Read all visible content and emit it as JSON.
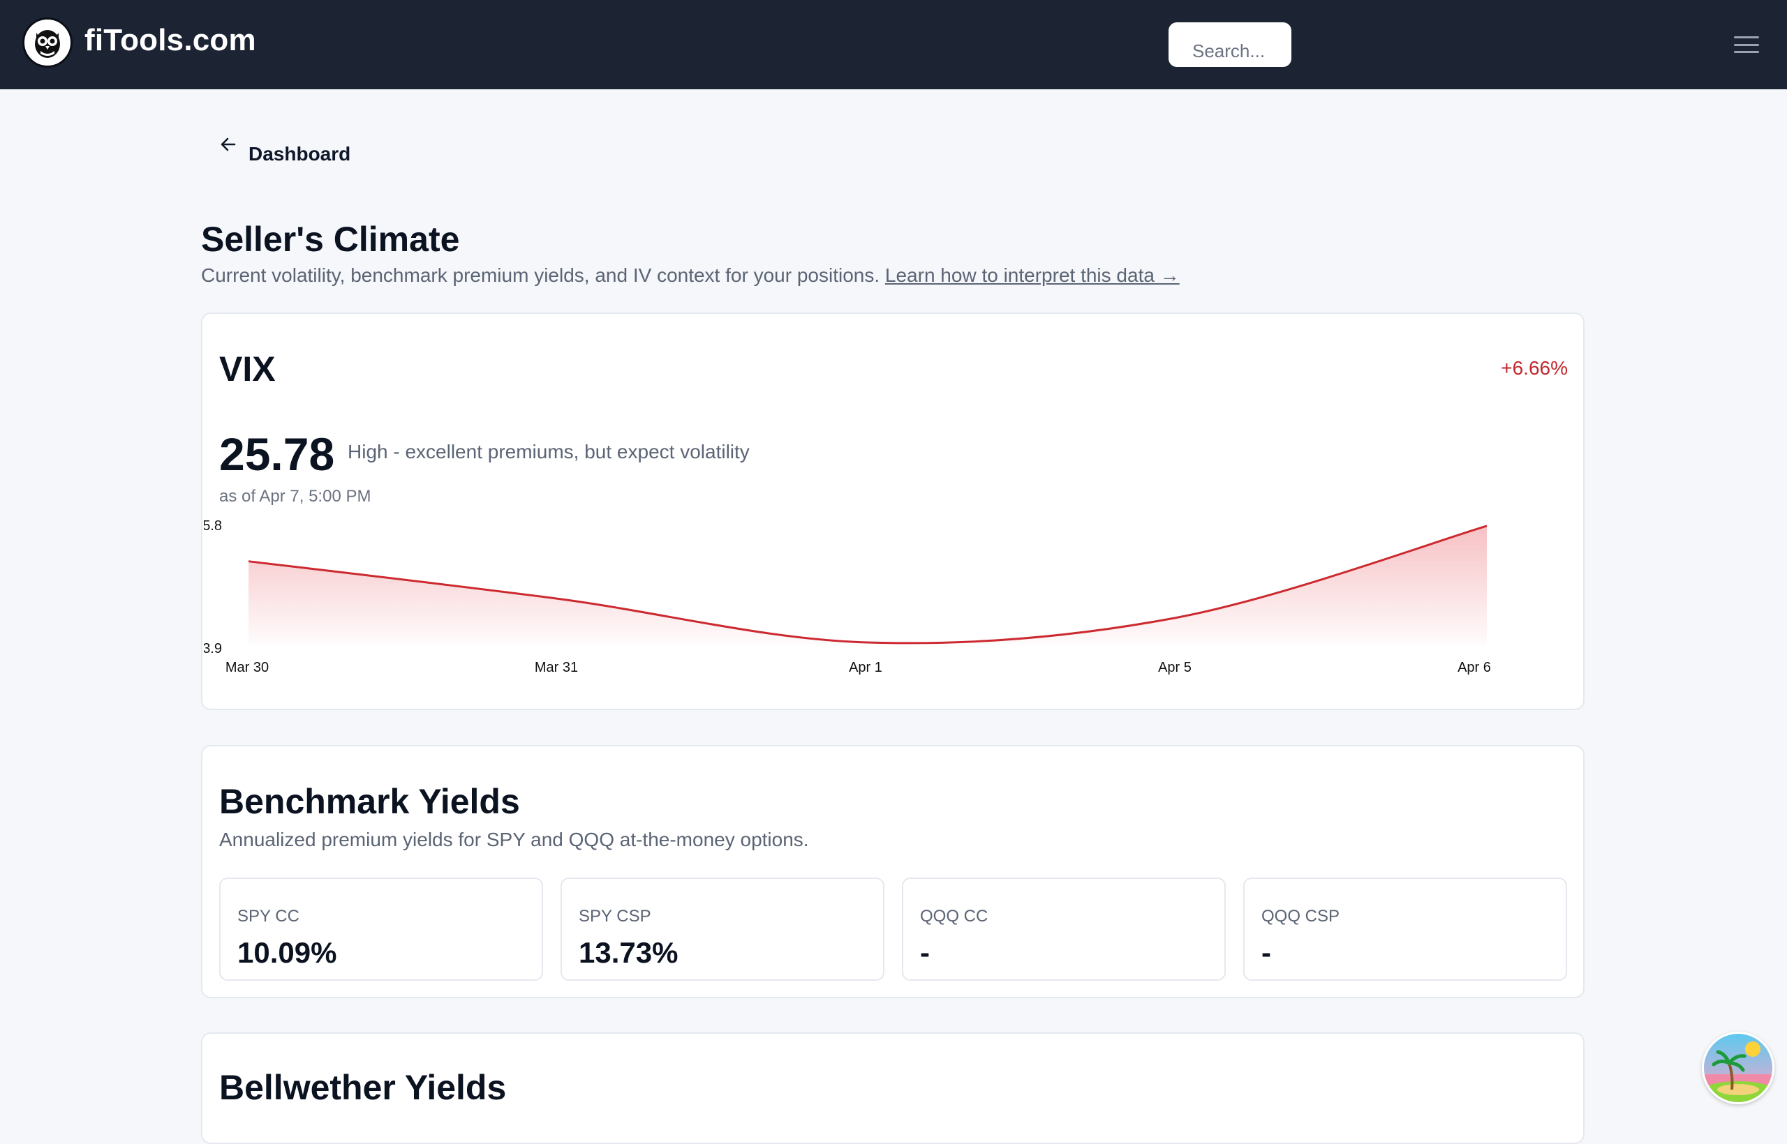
{
  "header": {
    "brand": "fiTools.com",
    "search_placeholder": "Search..."
  },
  "nav": {
    "back_label": "Dashboard"
  },
  "page": {
    "title": "Seller's Climate",
    "subtitle": "Current volatility, benchmark premium yields, and IV context for your positions.",
    "learn_link": "Learn how to interpret this data →"
  },
  "vix": {
    "title": "VIX",
    "change": "+6.66%",
    "value": "25.78",
    "description": "High - excellent premiums, but expect volatility",
    "as_of": "as of Apr 7, 5:00 PM"
  },
  "chart_data": {
    "type": "area",
    "categories": [
      "Mar 30",
      "Mar 31",
      "Apr 1",
      "Apr 5",
      "Apr 6"
    ],
    "series": [
      {
        "values": [
          24.0,
          22.2,
          20.1,
          21.3,
          25.7
        ]
      }
    ],
    "y_tick_labels": [
      "5.8",
      "3.9"
    ],
    "ylim": [
      20.0,
      25.9
    ],
    "colors": {
      "line": "#cc2a30",
      "fill": "#f5b6ba"
    },
    "grid": false
  },
  "benchmark": {
    "title": "Benchmark Yields",
    "subtitle": "Annualized premium yields for SPY and QQQ at-the-money options.",
    "tiles": [
      {
        "label": "SPY CC",
        "value": "10.09%"
      },
      {
        "label": "SPY CSP",
        "value": "13.73%"
      },
      {
        "label": "QQQ CC",
        "value": "-"
      },
      {
        "label": "QQQ CSP",
        "value": "-"
      }
    ]
  },
  "bellwether": {
    "title": "Bellwether Yields"
  },
  "icons": {
    "logo": "owl-logo-icon",
    "menu": "hamburger-menu-icon",
    "back": "arrow-left-icon",
    "avatar": "beach-avatar"
  }
}
